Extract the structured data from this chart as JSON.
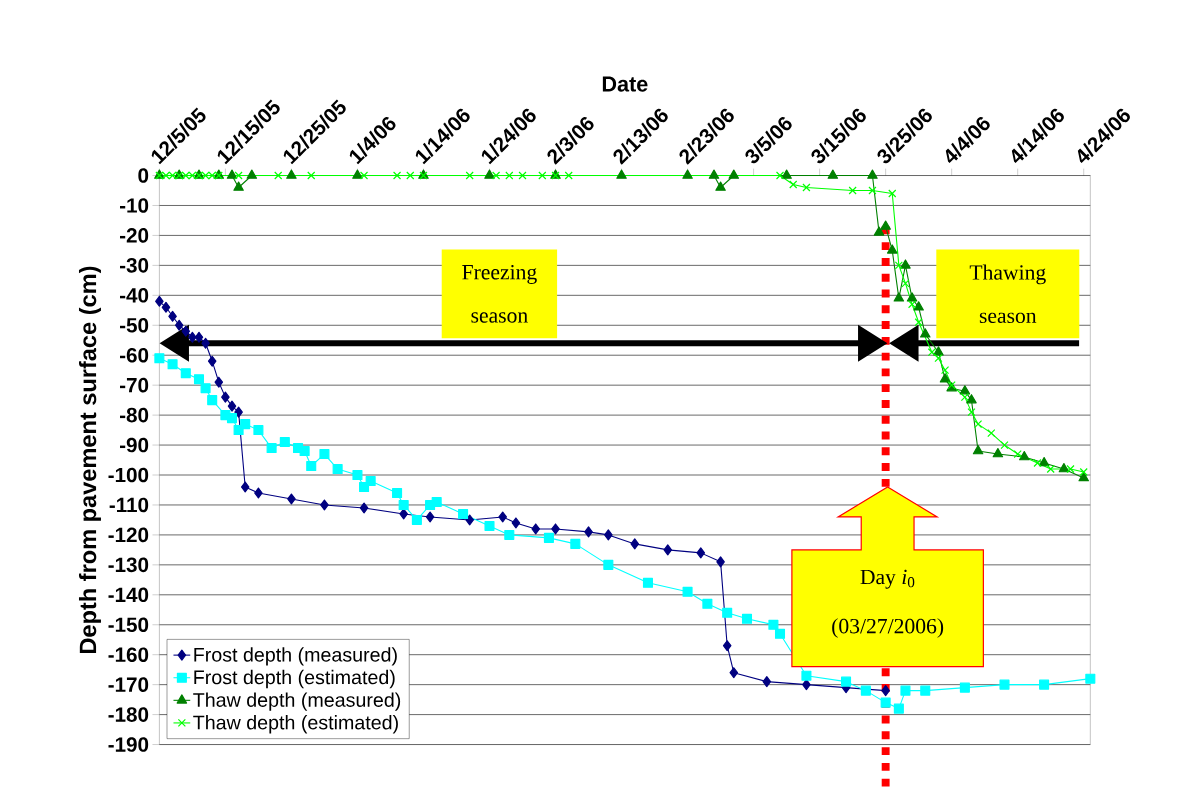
{
  "chart_data": {
    "type": "line",
    "xlabel": "Date",
    "ylabel": "Depth from pavement surface (cm)",
    "xlim": [
      "2005-12-05",
      "2006-04-25"
    ],
    "ylim": [
      -190,
      0
    ],
    "xticks": [
      {
        "value": "2005-12-05",
        "label": "12/5/05"
      },
      {
        "value": "2005-12-15",
        "label": "12/15/05"
      },
      {
        "value": "2005-12-25",
        "label": "12/25/05"
      },
      {
        "value": "2006-01-04",
        "label": "1/4/06"
      },
      {
        "value": "2006-01-14",
        "label": "1/14/06"
      },
      {
        "value": "2006-01-24",
        "label": "1/24/06"
      },
      {
        "value": "2006-02-03",
        "label": "2/3/06"
      },
      {
        "value": "2006-02-13",
        "label": "2/13/06"
      },
      {
        "value": "2006-02-23",
        "label": "2/23/06"
      },
      {
        "value": "2006-03-05",
        "label": "3/5/06"
      },
      {
        "value": "2006-03-15",
        "label": "3/15/06"
      },
      {
        "value": "2006-03-25",
        "label": "3/25/06"
      },
      {
        "value": "2006-04-04",
        "label": "4/4/06"
      },
      {
        "value": "2006-04-14",
        "label": "4/14/06"
      },
      {
        "value": "2006-04-24",
        "label": "4/24/06"
      }
    ],
    "yticks": [
      0,
      -10,
      -20,
      -30,
      -40,
      -50,
      -60,
      -70,
      -80,
      -90,
      -100,
      -110,
      -120,
      -130,
      -140,
      -150,
      -160,
      -170,
      -180,
      -190
    ],
    "grid": "y",
    "legend": "bottom left",
    "series": [
      {
        "name": "Frost depth (measured)",
        "color": "#000080",
        "marker": "diamond",
        "line_style": "solid",
        "x": [
          "2005-12-05",
          "2005-12-06",
          "2005-12-07",
          "2005-12-08",
          "2005-12-09",
          "2005-12-10",
          "2005-12-11",
          "2005-12-12",
          "2005-12-13",
          "2005-12-14",
          "2005-12-15",
          "2005-12-16",
          "2005-12-17",
          "2005-12-18",
          "2005-12-20",
          "2005-12-25",
          "2005-12-30",
          "2006-01-05",
          "2006-01-11",
          "2006-01-15",
          "2006-01-21",
          "2006-01-26",
          "2006-01-28",
          "2006-01-31",
          "2006-02-03",
          "2006-02-08",
          "2006-02-11",
          "2006-02-15",
          "2006-02-20",
          "2006-02-25",
          "2006-02-28",
          "2006-03-01",
          "2006-03-02",
          "2006-03-07",
          "2006-03-13",
          "2006-03-19",
          "2006-03-25"
        ],
        "values": [
          -42,
          -44,
          -47,
          -50,
          -52,
          -54,
          -54,
          -56,
          -62,
          -69,
          -74,
          -77,
          -79,
          -104,
          -106,
          -108,
          -110,
          -111,
          -113,
          -114,
          -115,
          -114,
          -116,
          -118,
          -118,
          -119,
          -120,
          -123,
          -125,
          -126,
          -129,
          -157,
          -166,
          -169,
          -170,
          -171,
          -172
        ]
      },
      {
        "name": "Frost depth (estimated)",
        "color": "#00ffff",
        "marker": "square",
        "line_style": "solid",
        "x": [
          "2005-12-05",
          "2005-12-07",
          "2005-12-09",
          "2005-12-11",
          "2005-12-12",
          "2005-12-13",
          "2005-12-15",
          "2005-12-16",
          "2005-12-17",
          "2005-12-18",
          "2005-12-20",
          "2005-12-22",
          "2005-12-24",
          "2005-12-26",
          "2005-12-27",
          "2005-12-28",
          "2005-12-30",
          "2006-01-01",
          "2006-01-04",
          "2006-01-05",
          "2006-01-06",
          "2006-01-10",
          "2006-01-11",
          "2006-01-13",
          "2006-01-15",
          "2006-01-16",
          "2006-01-20",
          "2006-01-24",
          "2006-01-27",
          "2006-02-02",
          "2006-02-06",
          "2006-02-11",
          "2006-02-17",
          "2006-02-23",
          "2006-02-26",
          "2006-03-01",
          "2006-03-04",
          "2006-03-08",
          "2006-03-09",
          "2006-03-11",
          "2006-03-13",
          "2006-03-19",
          "2006-03-22",
          "2006-03-25",
          "2006-03-27",
          "2006-03-28",
          "2006-03-31",
          "2006-04-06",
          "2006-04-12",
          "2006-04-18",
          "2006-04-25"
        ],
        "values": [
          -61,
          -63,
          -66,
          -68,
          -71,
          -75,
          -80,
          -81,
          -85,
          -83,
          -85,
          -91,
          -89,
          -91,
          -92,
          -97,
          -93,
          -98,
          -100,
          -104,
          -102,
          -106,
          -110,
          -115,
          -110,
          -109,
          -113,
          -117,
          -120,
          -121,
          -123,
          -130,
          -136,
          -139,
          -143,
          -146,
          -148,
          -150,
          -153,
          null,
          -167,
          -169,
          -172,
          -176,
          -178,
          -172,
          -172,
          -171,
          -170,
          -170,
          -168
        ]
      },
      {
        "name": "Thaw depth (measured)",
        "color": "#008000",
        "marker": "triangle",
        "line_style": "solid",
        "x": [
          "2005-12-05",
          "2005-12-08",
          "2005-12-11",
          "2005-12-14",
          "2005-12-16",
          "2005-12-17",
          "2005-12-19",
          "2005-12-25",
          "2006-01-04",
          "2006-01-14",
          "2006-01-24",
          "2006-02-03",
          "2006-02-13",
          "2006-02-23",
          "2006-02-27",
          "2006-02-28",
          "2006-03-02",
          "2006-03-10",
          "2006-03-17",
          "2006-03-23",
          "2006-03-24",
          "2006-03-25",
          "2006-03-26",
          "2006-03-27",
          "2006-03-28",
          "2006-03-29",
          "2006-03-30",
          "2006-03-31",
          "2006-04-02",
          "2006-04-03",
          "2006-04-04",
          "2006-04-06",
          "2006-04-07",
          "2006-04-08",
          "2006-04-11",
          "2006-04-15",
          "2006-04-18",
          "2006-04-21",
          "2006-04-24"
        ],
        "values": [
          0,
          0,
          0,
          0,
          0,
          -4,
          0,
          0,
          0,
          0,
          0,
          0,
          0,
          0,
          0,
          -4,
          0,
          0,
          0,
          0,
          -19,
          -17,
          -25,
          -41,
          -30,
          -41,
          -44,
          -53,
          -59,
          -68,
          -71,
          -72,
          -75,
          -92,
          -93,
          -94,
          -96,
          -98,
          -101
        ]
      },
      {
        "name": "Thaw depth (estimated)",
        "color": "#00ff00",
        "marker": "cross",
        "line_style": "solid",
        "x": [
          "2005-12-05",
          "2005-12-06",
          "2005-12-07",
          "2005-12-08",
          "2005-12-09",
          "2005-12-10",
          "2005-12-11",
          "2005-12-12",
          "2005-12-13",
          "2005-12-14",
          "2005-12-17",
          "2005-12-23",
          "2005-12-28",
          "2006-01-05",
          "2006-01-10",
          "2006-01-12",
          "2006-01-14",
          "2006-01-21",
          "2006-01-25",
          "2006-01-27",
          "2006-01-29",
          "2006-02-01",
          "2006-02-03",
          "2006-02-05",
          "2006-03-09",
          "2006-03-11",
          "2006-03-13",
          "2006-03-20",
          "2006-03-23",
          "2006-03-26",
          "2006-03-27",
          "2006-03-28",
          "2006-03-29",
          "2006-03-30",
          "2006-04-01",
          "2006-04-02",
          "2006-04-03",
          "2006-04-04",
          "2006-04-06",
          "2006-04-07",
          "2006-04-08",
          "2006-04-10",
          "2006-04-12",
          "2006-04-14",
          "2006-04-17",
          "2006-04-19",
          "2006-04-22",
          "2006-04-24"
        ],
        "values": [
          0,
          0,
          0,
          0,
          0,
          0,
          0,
          0,
          0,
          0,
          0,
          0,
          0,
          0,
          0,
          0,
          0,
          0,
          0,
          0,
          0,
          0,
          0,
          0,
          0,
          -3,
          -4,
          -5,
          -5,
          -6,
          -30,
          -36,
          -43,
          -49,
          -59,
          -61,
          -65,
          -70,
          -74,
          -79,
          -83,
          -86,
          -90,
          -93,
          -96,
          -98,
          -98,
          -99
        ]
      }
    ],
    "ref_lines": [
      {
        "axis": "x",
        "value": "2006-03-25",
        "color": "#ff0000",
        "line_style": "dotted"
      }
    ],
    "annotations": [
      "Freezing season",
      "Thawing season",
      "Day *i*$_{0}$",
      "(03/27/2006)"
    ]
  }
}
